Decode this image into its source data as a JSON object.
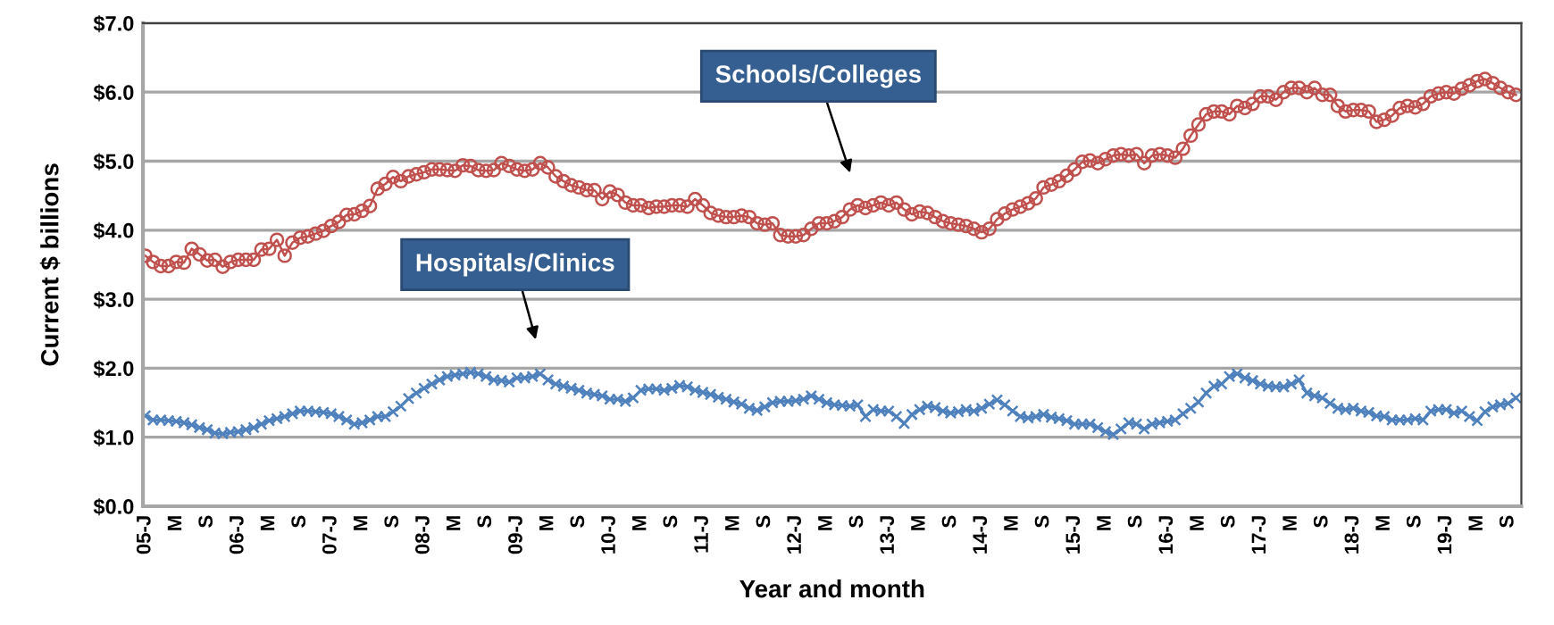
{
  "chart_data": {
    "type": "line",
    "xlabel": "Year and month",
    "ylabel": "Current $ billions",
    "categories": [
      "05-J",
      null,
      null,
      null,
      "M",
      null,
      null,
      null,
      "S",
      null,
      null,
      null,
      "06-J",
      null,
      null,
      null,
      "M",
      null,
      null,
      null,
      "S",
      null,
      null,
      null,
      "07-J",
      null,
      null,
      null,
      "M",
      null,
      null,
      null,
      "S",
      null,
      null,
      null,
      "08-J",
      null,
      null,
      null,
      "M",
      null,
      null,
      null,
      "S",
      null,
      null,
      null,
      "09-J",
      null,
      null,
      null,
      "M",
      null,
      null,
      null,
      "S",
      null,
      null,
      null,
      "10-J",
      null,
      null,
      null,
      "M",
      null,
      null,
      null,
      "S",
      null,
      null,
      null,
      "11-J",
      null,
      null,
      null,
      "M",
      null,
      null,
      null,
      "S",
      null,
      null,
      null,
      "12-J",
      null,
      null,
      null,
      "M",
      null,
      null,
      null,
      "S",
      null,
      null,
      null,
      "13-J",
      null,
      null,
      null,
      "M",
      null,
      null,
      null,
      "S",
      null,
      null,
      null,
      "14-J",
      null,
      null,
      null,
      "M",
      null,
      null,
      null,
      "S",
      null,
      null,
      null,
      "15-J",
      null,
      null,
      null,
      "M",
      null,
      null,
      null,
      "S",
      null,
      null,
      null,
      "16-J",
      null,
      null,
      null,
      "M",
      null,
      null,
      null,
      "S",
      null,
      null,
      null,
      "17-J",
      null,
      null,
      null,
      "M",
      null,
      null,
      null,
      "S",
      null,
      null,
      null,
      "18-J",
      null,
      null,
      null,
      "M",
      null,
      null,
      null,
      "S",
      null,
      null,
      null,
      "19-J",
      null,
      null,
      null,
      "M",
      null,
      null,
      null,
      "S",
      null
    ],
    "series": [
      {
        "color": "#c0504d",
        "marker": "circle",
        "values": [
          3.63,
          3.54,
          3.48,
          3.48,
          3.54,
          3.53,
          3.73,
          3.65,
          3.56,
          3.57,
          3.47,
          3.54,
          3.57,
          3.57,
          3.57,
          3.72,
          3.73,
          3.86,
          3.63,
          3.82,
          3.89,
          3.91,
          3.95,
          3.99,
          4.06,
          4.12,
          4.22,
          4.23,
          4.28,
          4.35,
          4.6,
          4.67,
          4.77,
          4.71,
          4.78,
          4.81,
          4.84,
          4.88,
          4.88,
          4.87,
          4.86,
          4.94,
          4.93,
          4.87,
          4.86,
          4.87,
          4.97,
          4.93,
          4.88,
          4.86,
          4.88,
          4.97,
          4.91,
          4.78,
          4.71,
          4.65,
          4.62,
          4.58,
          4.58,
          4.45,
          4.56,
          4.51,
          4.4,
          4.36,
          4.36,
          4.32,
          4.34,
          4.34,
          4.36,
          4.36,
          4.34,
          4.45,
          4.36,
          4.25,
          4.21,
          4.19,
          4.19,
          4.21,
          4.19,
          4.1,
          4.08,
          4.1,
          3.93,
          3.91,
          3.91,
          3.93,
          4.02,
          4.1,
          4.1,
          4.13,
          4.19,
          4.3,
          4.36,
          4.32,
          4.36,
          4.4,
          4.36,
          4.4,
          4.3,
          4.23,
          4.27,
          4.25,
          4.19,
          4.13,
          4.1,
          4.08,
          4.06,
          4.02,
          3.97,
          4.02,
          4.16,
          4.24,
          4.3,
          4.34,
          4.39,
          4.46,
          4.62,
          4.66,
          4.71,
          4.79,
          4.88,
          4.99,
          5.01,
          4.97,
          5.03,
          5.08,
          5.1,
          5.08,
          5.1,
          4.97,
          5.08,
          5.1,
          5.08,
          5.05,
          5.18,
          5.37,
          5.53,
          5.68,
          5.72,
          5.72,
          5.68,
          5.8,
          5.77,
          5.83,
          5.94,
          5.94,
          5.89,
          6.0,
          6.06,
          6.06,
          6.0,
          6.06,
          5.96,
          5.96,
          5.8,
          5.72,
          5.74,
          5.74,
          5.72,
          5.57,
          5.6,
          5.66,
          5.77,
          5.8,
          5.78,
          5.83,
          5.94,
          5.98,
          6.0,
          5.98,
          6.05,
          6.1,
          6.16,
          6.19,
          6.13,
          6.06,
          6.0,
          5.96
        ]
      },
      {
        "color": "#4f81bd",
        "marker": "cross",
        "values": [
          1.31,
          1.25,
          1.25,
          1.24,
          1.23,
          1.21,
          1.18,
          1.14,
          1.11,
          1.06,
          1.05,
          1.07,
          1.08,
          1.11,
          1.14,
          1.19,
          1.24,
          1.27,
          1.3,
          1.34,
          1.38,
          1.38,
          1.37,
          1.36,
          1.34,
          1.3,
          1.25,
          1.19,
          1.21,
          1.25,
          1.3,
          1.3,
          1.37,
          1.45,
          1.56,
          1.64,
          1.71,
          1.77,
          1.83,
          1.88,
          1.9,
          1.92,
          1.94,
          1.92,
          1.88,
          1.83,
          1.82,
          1.8,
          1.86,
          1.86,
          1.88,
          1.92,
          1.83,
          1.77,
          1.74,
          1.71,
          1.68,
          1.64,
          1.62,
          1.6,
          1.55,
          1.55,
          1.52,
          1.57,
          1.68,
          1.7,
          1.7,
          1.68,
          1.71,
          1.75,
          1.73,
          1.68,
          1.65,
          1.62,
          1.58,
          1.55,
          1.51,
          1.48,
          1.42,
          1.39,
          1.44,
          1.5,
          1.52,
          1.52,
          1.53,
          1.55,
          1.6,
          1.55,
          1.5,
          1.47,
          1.46,
          1.45,
          1.47,
          1.3,
          1.4,
          1.38,
          1.38,
          1.3,
          1.2,
          1.33,
          1.4,
          1.45,
          1.43,
          1.38,
          1.35,
          1.37,
          1.4,
          1.38,
          1.42,
          1.48,
          1.54,
          1.47,
          1.38,
          1.3,
          1.28,
          1.3,
          1.33,
          1.29,
          1.27,
          1.24,
          1.19,
          1.19,
          1.19,
          1.14,
          1.08,
          1.04,
          1.12,
          1.21,
          1.19,
          1.12,
          1.19,
          1.21,
          1.23,
          1.25,
          1.34,
          1.42,
          1.51,
          1.64,
          1.74,
          1.77,
          1.88,
          1.92,
          1.86,
          1.82,
          1.77,
          1.74,
          1.73,
          1.73,
          1.77,
          1.83,
          1.64,
          1.6,
          1.57,
          1.49,
          1.42,
          1.4,
          1.42,
          1.38,
          1.36,
          1.31,
          1.3,
          1.25,
          1.25,
          1.25,
          1.27,
          1.25,
          1.38,
          1.4,
          1.4,
          1.35,
          1.38,
          1.3,
          1.24,
          1.37,
          1.44,
          1.47,
          1.49,
          1.57
        ]
      }
    ],
    "ylim": [
      0,
      7
    ],
    "yticks": [
      {
        "value": 0,
        "label": "$0.0"
      },
      {
        "value": 1,
        "label": "$1.0"
      },
      {
        "value": 2,
        "label": "$2.0"
      },
      {
        "value": 3,
        "label": "$3.0"
      },
      {
        "value": 4,
        "label": "$4.0"
      },
      {
        "value": 5,
        "label": "$5.0"
      },
      {
        "value": 6,
        "label": "$6.0"
      },
      {
        "value": 7,
        "label": "$7.0"
      }
    ],
    "annotations": [
      "Schools/Colleges",
      "Hospitals/Clinics"
    ],
    "grid": "y"
  }
}
